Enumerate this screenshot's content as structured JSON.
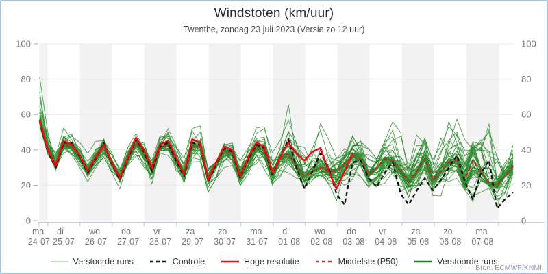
{
  "figure": {
    "title": "Windstoten (km/uur)",
    "subtitle": "Twenthe, zondag 23 juli 2023 (Versie zo 12 uur)",
    "source": "Bron: ECMWF/KNMI",
    "border_color": "#a9c3de"
  },
  "legend": [
    {
      "label": "Verstoorde runs",
      "color": "#a9d6a0",
      "dash": "",
      "width": 1.6
    },
    {
      "label": "Controle",
      "color": "#111111",
      "dash": "5 4",
      "width": 2.4
    },
    {
      "label": "Hoge resolutie",
      "color": "#dd1414",
      "dash": "",
      "width": 2.6
    },
    {
      "label": "Middelste (P50)",
      "color": "#ab382c",
      "dash": "5 4",
      "width": 2.4
    },
    {
      "label": "Verstoorde runs",
      "color": "#1f7a1f",
      "dash": "",
      "width": 2.6
    }
  ],
  "axes": {
    "ylim": [
      0,
      100
    ],
    "y_ticks": [
      0,
      20,
      40,
      60,
      80,
      100
    ],
    "y_label_color": "#767676",
    "grid_color": "#e9e9e9",
    "axis_line_color": "#c3d0e0",
    "band_gray": "#f2f2f2",
    "band_white": "#ffffff",
    "days": [
      {
        "dow": "ma",
        "date": "24-07"
      },
      {
        "dow": "di",
        "date": "25-07"
      },
      {
        "dow": "wo",
        "date": "26-07"
      },
      {
        "dow": "do",
        "date": "27-07"
      },
      {
        "dow": "vr",
        "date": "28-07"
      },
      {
        "dow": "za",
        "date": "29-07"
      },
      {
        "dow": "zo",
        "date": "30-07"
      },
      {
        "dow": "ma",
        "date": "31-07"
      },
      {
        "dow": "di",
        "date": "01-08"
      },
      {
        "dow": "wo",
        "date": "02-08"
      },
      {
        "dow": "do",
        "date": "03-08"
      },
      {
        "dow": "vr",
        "date": "04-08"
      },
      {
        "dow": "za",
        "date": "05-08"
      },
      {
        "dow": "zo",
        "date": "06-08"
      },
      {
        "dow": "ma",
        "date": "07-08"
      }
    ]
  },
  "chart_data": {
    "type": "line",
    "title": "Windstoten (km/uur)",
    "ylabel": "km/uur",
    "ylim": [
      0,
      100
    ],
    "grid": true,
    "legend_position": "bottom",
    "n_points": 60,
    "points_per_day": 4,
    "note_time_axis": "6-uurlijkse stappen; eerste punt een kwart dag voor ma 24-07, laatste punt halverwege ma 07-08",
    "series": [
      {
        "name": "Hoge resolutie",
        "style": "solid",
        "color": "#dd1414",
        "values": [
          57,
          40,
          31,
          45,
          43,
          37,
          28,
          36,
          43,
          33,
          24,
          36,
          47,
          40,
          30,
          43,
          45,
          36,
          26,
          46,
          44,
          23,
          33,
          42,
          40,
          25,
          36,
          44,
          42,
          27,
          36,
          44,
          38,
          34,
          39,
          41,
          28,
          18,
          28,
          38
        ]
      },
      {
        "name": "Controle",
        "style": "dashed",
        "color": "#111111",
        "values": [
          56,
          39,
          30,
          44,
          44,
          36,
          27,
          35,
          44,
          32,
          23,
          35,
          46,
          39,
          28,
          42,
          44,
          34,
          25,
          44,
          43,
          22,
          32,
          41,
          39,
          24,
          35,
          43,
          41,
          26,
          36,
          46,
          30,
          18,
          28,
          38,
          30,
          15,
          9,
          33,
          34,
          24,
          19,
          27,
          33,
          15,
          9,
          17,
          24,
          17,
          23,
          30,
          37,
          22,
          12,
          27,
          34,
          7,
          12,
          16
        ]
      },
      {
        "name": "Middelste (P50)",
        "style": "dashed",
        "color": "#ab382c",
        "values": [
          56,
          41,
          32,
          43,
          42,
          36,
          28,
          35,
          42,
          32,
          25,
          35,
          44,
          38,
          28,
          41,
          43,
          34,
          27,
          42,
          42,
          25,
          33,
          40,
          38,
          26,
          34,
          42,
          40,
          27,
          35,
          38,
          31,
          25,
          28,
          30,
          28,
          28,
          32,
          37,
          35,
          26,
          30,
          35,
          34,
          28,
          22,
          28,
          35,
          23,
          28,
          33,
          34,
          23,
          34,
          28,
          21,
          20,
          25,
          31
        ]
      }
    ],
    "ensemble": {
      "name": "Verstoorde runs",
      "member_count": 50,
      "color": "#2e8b2e",
      "min": [
        50,
        36,
        27,
        38,
        36,
        30,
        22,
        30,
        36,
        26,
        18,
        28,
        36,
        30,
        20,
        33,
        35,
        26,
        18,
        32,
        32,
        16,
        24,
        30,
        28,
        16,
        24,
        30,
        28,
        16,
        24,
        26,
        24,
        14,
        20,
        24,
        18,
        10,
        14,
        22,
        22,
        14,
        12,
        20,
        22,
        14,
        8,
        14,
        20,
        12,
        14,
        20,
        22,
        14,
        10,
        16,
        18,
        8,
        10,
        14
      ],
      "max": [
        81,
        52,
        42,
        55,
        52,
        46,
        38,
        48,
        53,
        44,
        34,
        46,
        55,
        48,
        38,
        52,
        55,
        45,
        36,
        52,
        54,
        38,
        44,
        52,
        52,
        40,
        46,
        56,
        56,
        42,
        48,
        70,
        60,
        48,
        55,
        62,
        52,
        44,
        48,
        58,
        60,
        50,
        46,
        56,
        62,
        52,
        46,
        52,
        60,
        50,
        52,
        58,
        70,
        56,
        50,
        56,
        60,
        48,
        52,
        58
      ]
    }
  }
}
